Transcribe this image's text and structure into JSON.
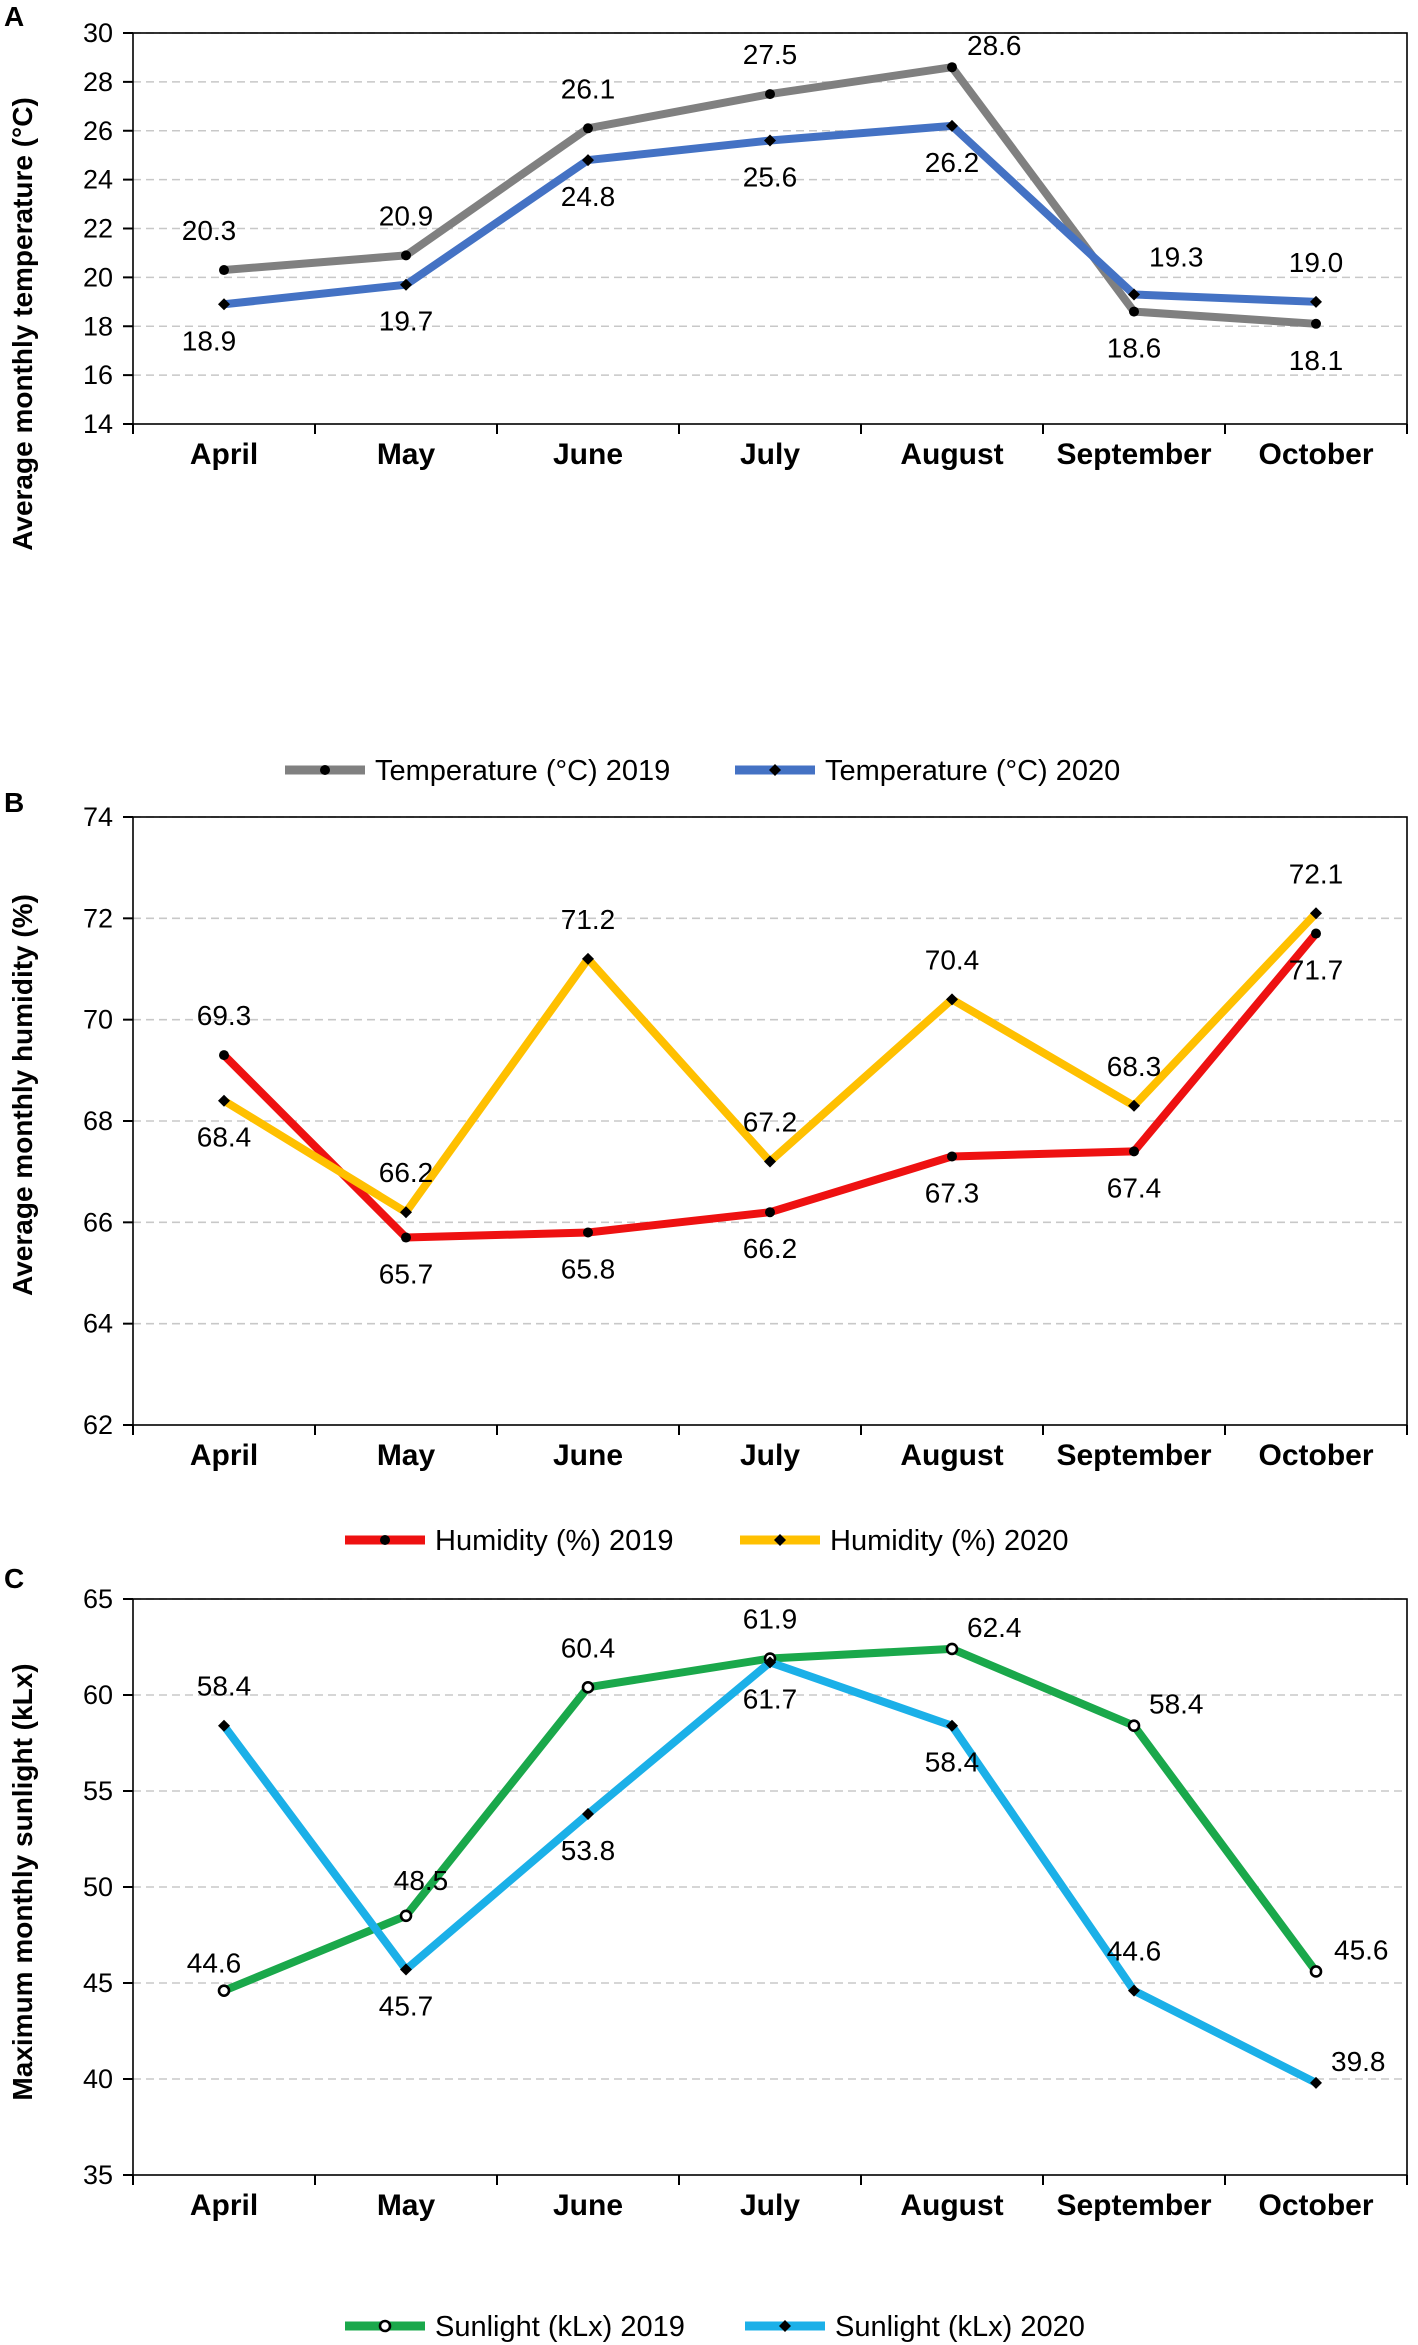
{
  "chart_data": [
    {
      "panel": "A",
      "type": "line",
      "ylabel": "Average monthly temperature  (°C)",
      "ylim": [
        14,
        30
      ],
      "ystep": 2,
      "categories": [
        "April",
        "May",
        "June",
        "July",
        "August",
        "September",
        "October"
      ],
      "series": [
        {
          "name": "Temperature (°C) 2019",
          "color": "#808080",
          "marker": "circle",
          "values": [
            20.3,
            20.9,
            26.1,
            27.5,
            28.6,
            18.6,
            18.1
          ],
          "labels": [
            "20.3",
            "20.9",
            "26.1",
            "27.5",
            "28.6",
            "18.6",
            "18.1"
          ]
        },
        {
          "name": "Temperature (°C) 2020",
          "color": "#4472C4",
          "marker": "diamond",
          "values": [
            18.9,
            19.7,
            24.8,
            25.6,
            26.2,
            19.3,
            19.0
          ],
          "labels": [
            "18.9",
            "19.7",
            "24.8",
            "25.6",
            "26.2",
            "19.3",
            "19.0"
          ]
        }
      ]
    },
    {
      "panel": "B",
      "type": "line",
      "ylabel": "Average monthly humidity  (%)",
      "ylim": [
        62,
        74
      ],
      "ystep": 2,
      "categories": [
        "April",
        "May",
        "June",
        "July",
        "August",
        "September",
        "October"
      ],
      "series": [
        {
          "name": "Humidity (%) 2019",
          "color": "#EE1111",
          "marker": "circle",
          "values": [
            69.3,
            65.7,
            65.8,
            66.2,
            67.3,
            67.4,
            71.7
          ],
          "labels": [
            "69.3",
            "65.7",
            "65.8",
            "66.2",
            "67.3",
            "67.4",
            "71.7"
          ]
        },
        {
          "name": "Humidity (%) 2020",
          "color": "#FFC000",
          "marker": "diamond",
          "values": [
            68.4,
            66.2,
            71.2,
            67.2,
            70.4,
            68.3,
            72.1
          ],
          "labels": [
            "68.4",
            "66.2",
            "71.2",
            "67.2",
            "70.4",
            "68.3",
            "72.1"
          ]
        }
      ]
    },
    {
      "panel": "C",
      "type": "line",
      "ylabel": "Maximum monthly sunlight  (kLx)",
      "ylim": [
        35,
        65
      ],
      "ystep": 5,
      "categories": [
        "April",
        "May",
        "June",
        "July",
        "August",
        "September",
        "October"
      ],
      "series": [
        {
          "name": "Sunlight (kLx) 2019",
          "color": "#1AA84B",
          "marker": "ring",
          "values": [
            44.6,
            48.5,
            60.4,
            61.9,
            62.4,
            58.4,
            45.6
          ],
          "labels": [
            "44.6",
            "48.5",
            "60.4",
            "61.9",
            "62.4",
            "58.4",
            "45.6"
          ]
        },
        {
          "name": "Sunlight (kLx) 2020",
          "color": "#1BB0E8",
          "marker": "diamond",
          "values": [
            58.4,
            45.7,
            53.8,
            61.7,
            58.4,
            44.6,
            39.8
          ],
          "labels": [
            "58.4",
            "45.7",
            "53.8",
            "61.7",
            "58.4",
            "44.6",
            "39.8"
          ]
        }
      ]
    }
  ]
}
